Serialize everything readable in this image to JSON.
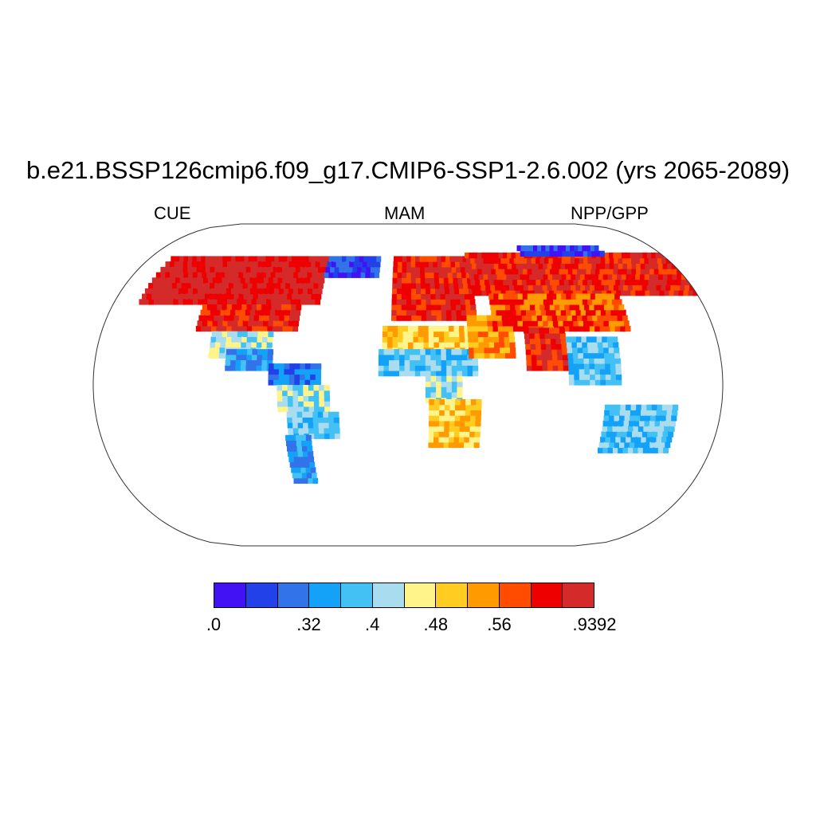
{
  "title": "b.e21.BSSP126cmip6.f09_g17.CMIP6-SSP1-2.6.002 (yrs 2065-2089)",
  "subtitles": {
    "left": "CUE",
    "center": "MAM",
    "right": "NPP/GPP"
  },
  "colorbar": {
    "colors": [
      "#4212f5",
      "#2341e8",
      "#3373ea",
      "#13a2f8",
      "#44c1f4",
      "#a9dcef",
      "#fff48a",
      "#ffcc22",
      "#ff9a00",
      "#ff4c00",
      "#ef0000",
      "#d42a2a"
    ],
    "labels": [
      {
        "text": ".0",
        "boundary": 0
      },
      {
        "text": ".32",
        "boundary": 3
      },
      {
        "text": ".4",
        "boundary": 5
      },
      {
        "text": ".48",
        "boundary": 7
      },
      {
        "text": ".56",
        "boundary": 9
      },
      {
        "text": ".9392",
        "boundary": 12
      }
    ]
  },
  "map": {
    "projection": "Robinson",
    "regions": [
      {
        "name": "north-america-north",
        "lon": [
          -165,
          -55
        ],
        "lat": [
          45,
          72
        ],
        "class": 11
      },
      {
        "name": "north-america-mid",
        "lon": [
          -125,
          -65
        ],
        "lat": [
          30,
          45
        ],
        "class": 10
      },
      {
        "name": "north-america-south",
        "lon": [
          -115,
          -80
        ],
        "lat": [
          15,
          30
        ],
        "class": 5
      },
      {
        "name": "central-america",
        "lon": [
          -105,
          -78
        ],
        "lat": [
          8,
          20
        ],
        "class": 3
      },
      {
        "name": "south-america-north",
        "lon": [
          -80,
          -50
        ],
        "lat": [
          0,
          12
        ],
        "class": 2
      },
      {
        "name": "amazon",
        "lon": [
          -75,
          -45
        ],
        "lat": [
          -15,
          0
        ],
        "class": 5
      },
      {
        "name": "south-america-mid",
        "lon": [
          -70,
          -40
        ],
        "lat": [
          -30,
          -15
        ],
        "class": 4
      },
      {
        "name": "south-america-south",
        "lon": [
          -72,
          -58
        ],
        "lat": [
          -55,
          -30
        ],
        "class": 3
      },
      {
        "name": "europe",
        "lon": [
          -10,
          40
        ],
        "lat": [
          36,
          70
        ],
        "class": 10
      },
      {
        "name": "sahara",
        "lon": [
          -15,
          35
        ],
        "lat": [
          18,
          33
        ],
        "class": 7
      },
      {
        "name": "sahel",
        "lon": [
          -17,
          40
        ],
        "lat": [
          5,
          18
        ],
        "class": 4
      },
      {
        "name": "central-africa",
        "lon": [
          10,
          30
        ],
        "lat": [
          -10,
          5
        ],
        "class": 5
      },
      {
        "name": "southern-africa",
        "lon": [
          12,
          40
        ],
        "lat": [
          -35,
          -10
        ],
        "class": 7
      },
      {
        "name": "middle-east",
        "lon": [
          35,
          60
        ],
        "lat": [
          15,
          38
        ],
        "class": 8
      },
      {
        "name": "siberia",
        "lon": [
          40,
          180
        ],
        "lat": [
          50,
          72
        ],
        "class": 10
      },
      {
        "name": "arctic-asia",
        "lon": [
          80,
          140
        ],
        "lat": [
          72,
          78
        ],
        "class": 1
      },
      {
        "name": "central-asia",
        "lon": [
          50,
          130
        ],
        "lat": [
          30,
          50
        ],
        "class": 9
      },
      {
        "name": "india",
        "lon": [
          68,
          90
        ],
        "lat": [
          8,
          30
        ],
        "class": 10
      },
      {
        "name": "southeast-asia",
        "lon": [
          92,
          122
        ],
        "lat": [
          0,
          25
        ],
        "class": 4
      },
      {
        "name": "australia",
        "lon": [
          113,
          153
        ],
        "lat": [
          -38,
          -12
        ],
        "class": 4
      },
      {
        "name": "greenland-coast",
        "lon": [
          -55,
          -20
        ],
        "lat": [
          60,
          70
        ],
        "class": 1
      }
    ]
  }
}
